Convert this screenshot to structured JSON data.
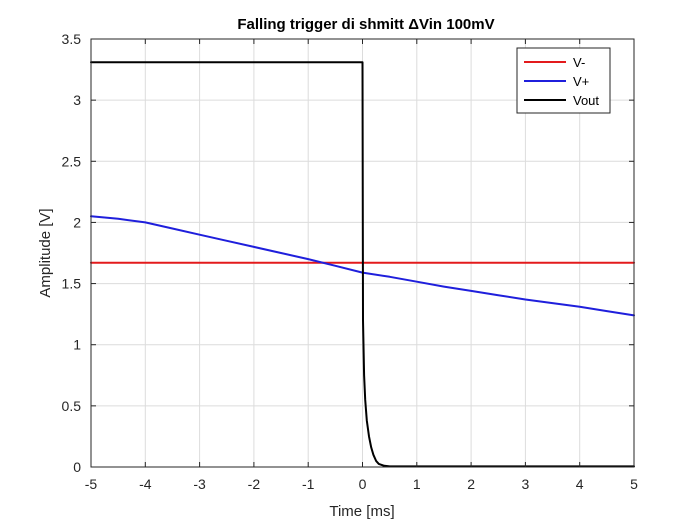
{
  "chart_data": {
    "type": "line",
    "title": "Falling trigger di shmitt ΔVin 100mV",
    "xlabel": "Time [ms]",
    "ylabel": "Amplitude [V]",
    "xlim": [
      -5,
      5
    ],
    "ylim": [
      0,
      3.5
    ],
    "xticks": [
      -5,
      -4,
      -3,
      -2,
      -1,
      0,
      1,
      2,
      3,
      4,
      5
    ],
    "xtick_labels": [
      "-5",
      "-4",
      "-3",
      "-2",
      "-1",
      "0",
      "1",
      "2",
      "3",
      "4",
      "5"
    ],
    "yticks": [
      0,
      0.5,
      1,
      1.5,
      2,
      2.5,
      3,
      3.5
    ],
    "ytick_labels": [
      "0",
      "0.5",
      "1",
      "1.5",
      "2",
      "2.5",
      "3",
      "3.5"
    ],
    "grid": true,
    "legend_position": "top-right",
    "series": [
      {
        "name": "V-",
        "color": "#e31a1c",
        "x": [
          -5,
          5
        ],
        "y": [
          1.67,
          1.67
        ]
      },
      {
        "name": "V+",
        "color": "#1f1fdc",
        "x": [
          -5,
          -4.5,
          -4,
          -3.5,
          -3,
          -2.5,
          -2,
          -1.5,
          -1,
          -0.5,
          0,
          0.5,
          1,
          1.5,
          2,
          2.5,
          3,
          3.5,
          4,
          4.5,
          5
        ],
        "y": [
          2.05,
          2.03,
          2.0,
          1.95,
          1.9,
          1.85,
          1.8,
          1.75,
          1.7,
          1.645,
          1.59,
          1.555,
          1.515,
          1.475,
          1.44,
          1.405,
          1.37,
          1.34,
          1.31,
          1.275,
          1.24
        ]
      },
      {
        "name": "Vout",
        "color": "#000000",
        "x": [
          -5,
          0,
          0.01,
          0.03,
          0.05,
          0.08,
          0.12,
          0.16,
          0.2,
          0.25,
          0.3,
          0.4,
          0.5,
          1,
          2,
          3,
          4,
          5
        ],
        "y": [
          3.31,
          3.31,
          1.2,
          0.75,
          0.55,
          0.38,
          0.25,
          0.16,
          0.1,
          0.05,
          0.025,
          0.01,
          0.005,
          0.005,
          0.005,
          0.005,
          0.005,
          0.005
        ]
      }
    ]
  }
}
